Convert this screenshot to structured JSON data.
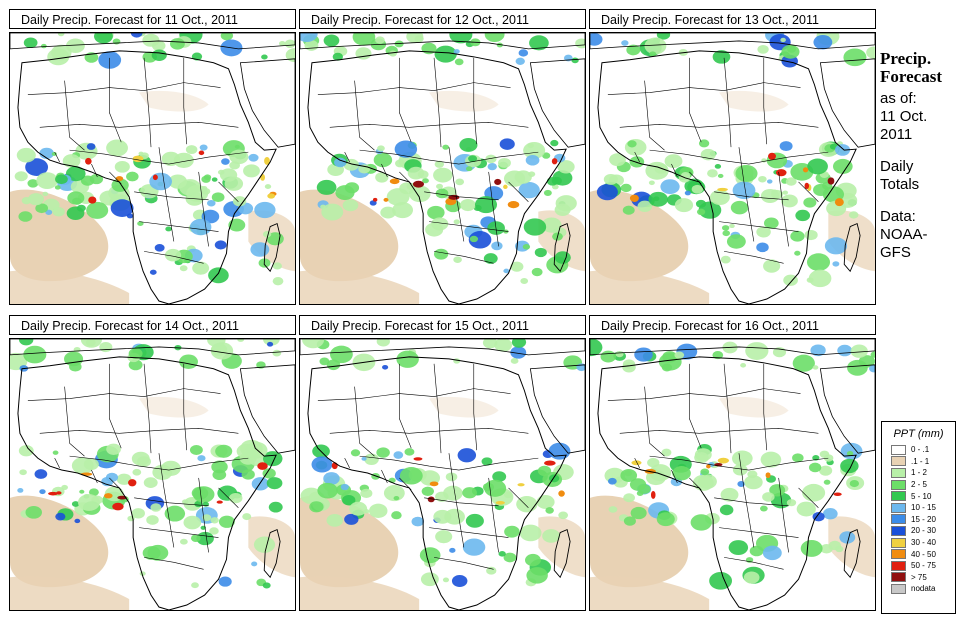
{
  "panels": [
    {
      "title": "Daily Precip. Forecast for  11 Oct., 2011",
      "intensity": 1.0
    },
    {
      "title": "Daily Precip. Forecast for  12 Oct., 2011",
      "intensity": 0.95
    },
    {
      "title": "Daily Precip. Forecast for  13 Oct., 2011",
      "intensity": 0.9
    },
    {
      "title": "Daily Precip. Forecast for  14 Oct., 2011",
      "intensity": 0.85
    },
    {
      "title": "Daily Precip. Forecast for  15 Oct., 2011",
      "intensity": 0.75
    },
    {
      "title": "Daily Precip. Forecast for  16 Oct., 2011",
      "intensity": 0.8
    }
  ],
  "side": {
    "heading1": "Precip.",
    "heading2": "Forecast",
    "asof": "as of:",
    "date1": "11 Oct.",
    "date2": "2011",
    "daily": "Daily",
    "totals": "Totals",
    "data_label": "Data:",
    "source1": "NOAA-",
    "source2": "GFS"
  },
  "legend": {
    "title": "PPT (mm)",
    "items": [
      {
        "label": "0 - .1",
        "color": "#ffffff"
      },
      {
        "label": ".1 - 1",
        "color": "#e8d2b4"
      },
      {
        "label": "1 - 2",
        "color": "#b8f0a8"
      },
      {
        "label": "2 - 5",
        "color": "#6cde68"
      },
      {
        "label": "5 - 10",
        "color": "#32c850"
      },
      {
        "label": "10 - 15",
        "color": "#6cb8ee"
      },
      {
        "label": "15 - 20",
        "color": "#3c8ce8"
      },
      {
        "label": "20 - 30",
        "color": "#1a50d8"
      },
      {
        "label": "30 - 40",
        "color": "#f0d040"
      },
      {
        "label": "40 - 50",
        "color": "#f08c10"
      },
      {
        "label": "50 - 75",
        "color": "#e02010"
      },
      {
        "label": "> 75",
        "color": "#901010"
      },
      {
        "label": "nodata",
        "color": "#c8c8c8"
      }
    ]
  },
  "colors": {
    "land": "#ffffff",
    "dry": "#e8d2b4",
    "border": "#000000"
  }
}
